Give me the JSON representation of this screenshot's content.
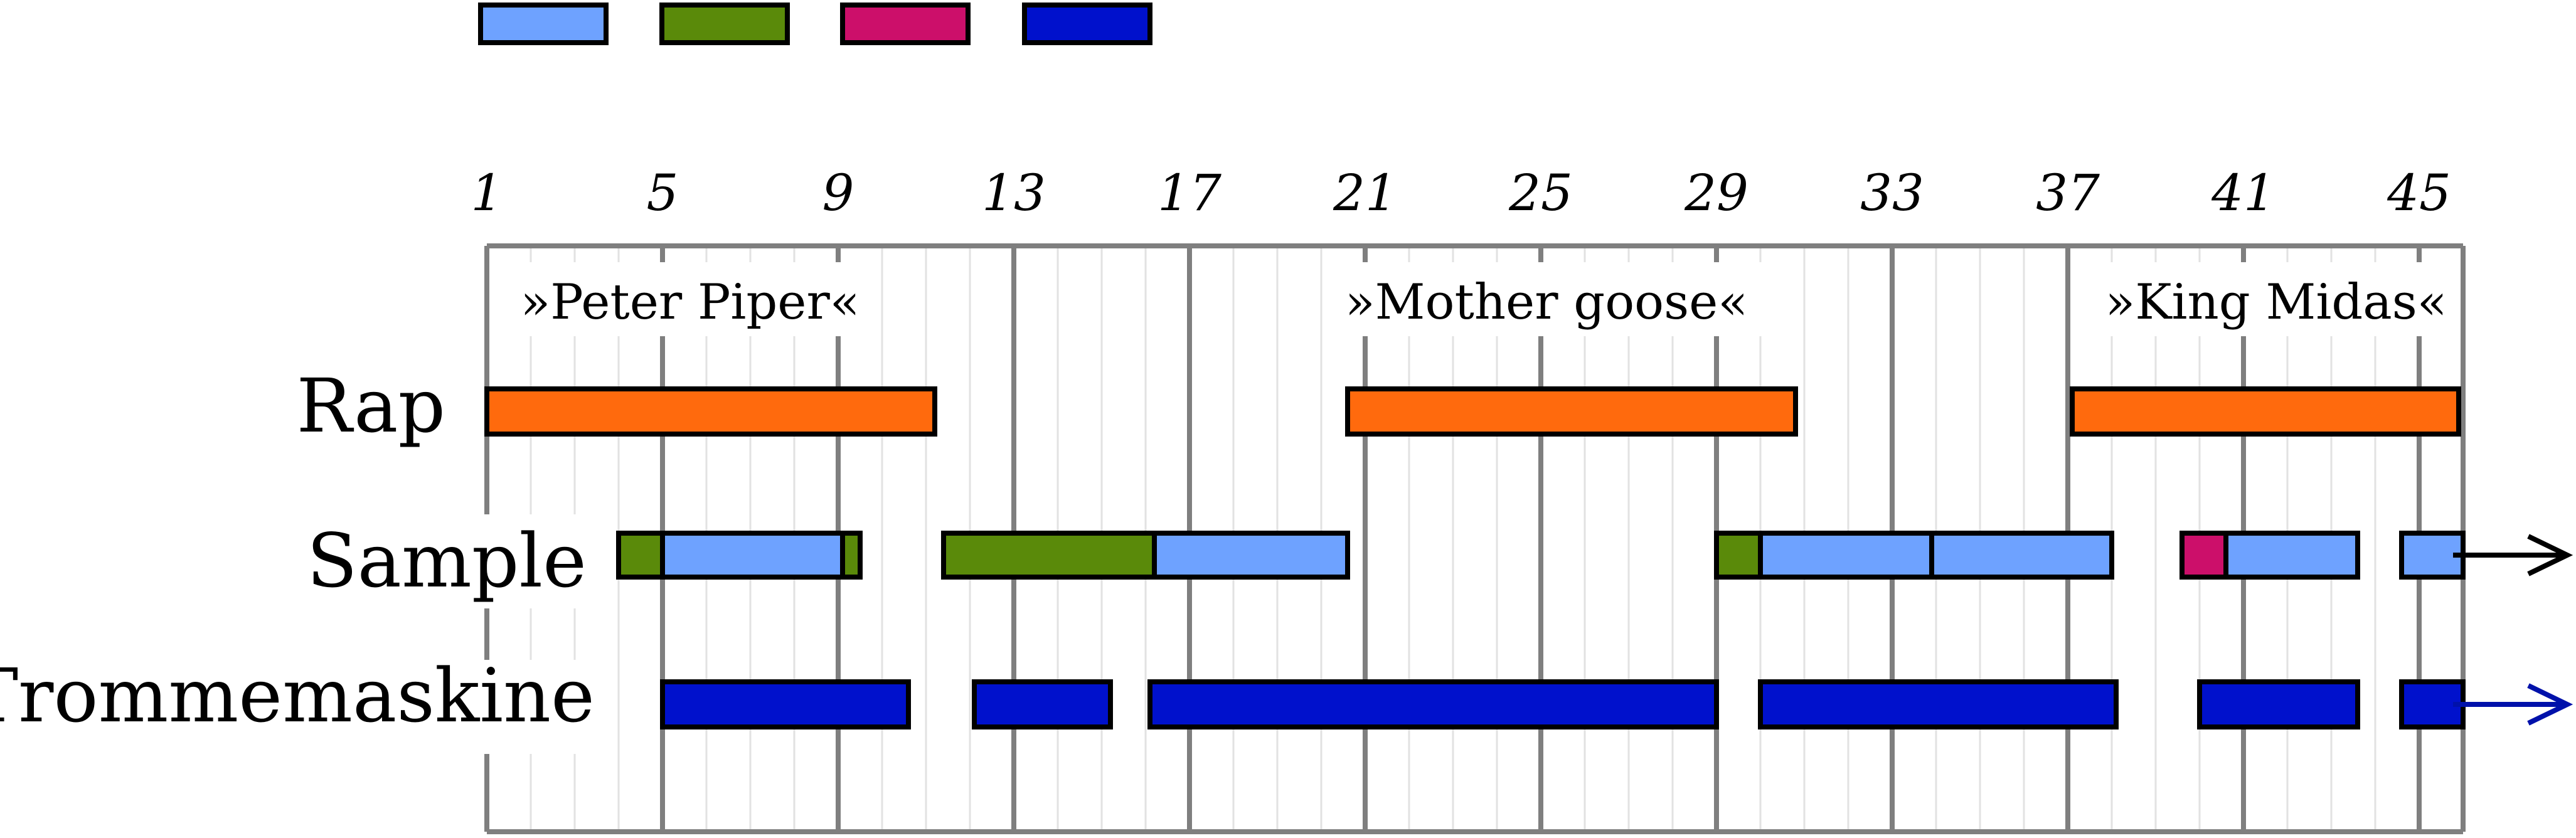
{
  "legend": [
    {
      "color": "#6ea2ff"
    },
    {
      "color": "#5a8a0a"
    },
    {
      "color": "#cc0f6a"
    },
    {
      "color": "#0011cc"
    }
  ],
  "ticks": [
    "1",
    "5",
    "9",
    "13",
    "17",
    "21",
    "25",
    "29",
    "33",
    "37",
    "41",
    "45"
  ],
  "sections": [
    {
      "label": "»Peter Piper«"
    },
    {
      "label": "»Mother goose«"
    },
    {
      "label": "»King Midas«"
    }
  ],
  "rows": [
    {
      "label": "Rap",
      "bars": [
        {
          "start": 1,
          "end": 11.2,
          "color": "#ff6a0d"
        },
        {
          "start": 20.6,
          "end": 30.8,
          "color": "#ff6a0d"
        },
        {
          "start": 37.1,
          "end": 45.9,
          "color": "#ff6a0d"
        }
      ]
    },
    {
      "label": "Sample",
      "arrow_color": "#000000",
      "bars": [
        {
          "start": 4.0,
          "end": 5.0,
          "color": "#5a8a0a"
        },
        {
          "start": 5.0,
          "end": 9.1,
          "color": "#6ea2ff"
        },
        {
          "start": 9.1,
          "end": 9.5,
          "color": "#5a8a0a"
        },
        {
          "start": 11.4,
          "end": 16.2,
          "color": "#5a8a0a"
        },
        {
          "start": 16.2,
          "end": 20.6,
          "color": "#6ea2ff"
        },
        {
          "start": 29.0,
          "end": 30.0,
          "color": "#5a8a0a"
        },
        {
          "start": 30.0,
          "end": 33.9,
          "color": "#6ea2ff"
        },
        {
          "start": 33.9,
          "end": 38.0,
          "color": "#6ea2ff"
        },
        {
          "start": 39.6,
          "end": 40.6,
          "color": "#cc0f6a"
        },
        {
          "start": 40.6,
          "end": 43.6,
          "color": "#6ea2ff"
        },
        {
          "start": 44.6,
          "end": 46.0,
          "color": "#6ea2ff"
        }
      ]
    },
    {
      "label": "Trommemaskine",
      "arrow_color": "#0011aa",
      "bars": [
        {
          "start": 5.0,
          "end": 10.6,
          "color": "#0011cc"
        },
        {
          "start": 12.1,
          "end": 15.2,
          "color": "#0011cc"
        },
        {
          "start": 16.1,
          "end": 29.0,
          "color": "#0011cc"
        },
        {
          "start": 30.0,
          "end": 38.1,
          "color": "#0011cc"
        },
        {
          "start": 40.0,
          "end": 43.6,
          "color": "#0011cc"
        },
        {
          "start": 44.6,
          "end": 46.0,
          "color": "#0011cc"
        }
      ]
    }
  ]
}
